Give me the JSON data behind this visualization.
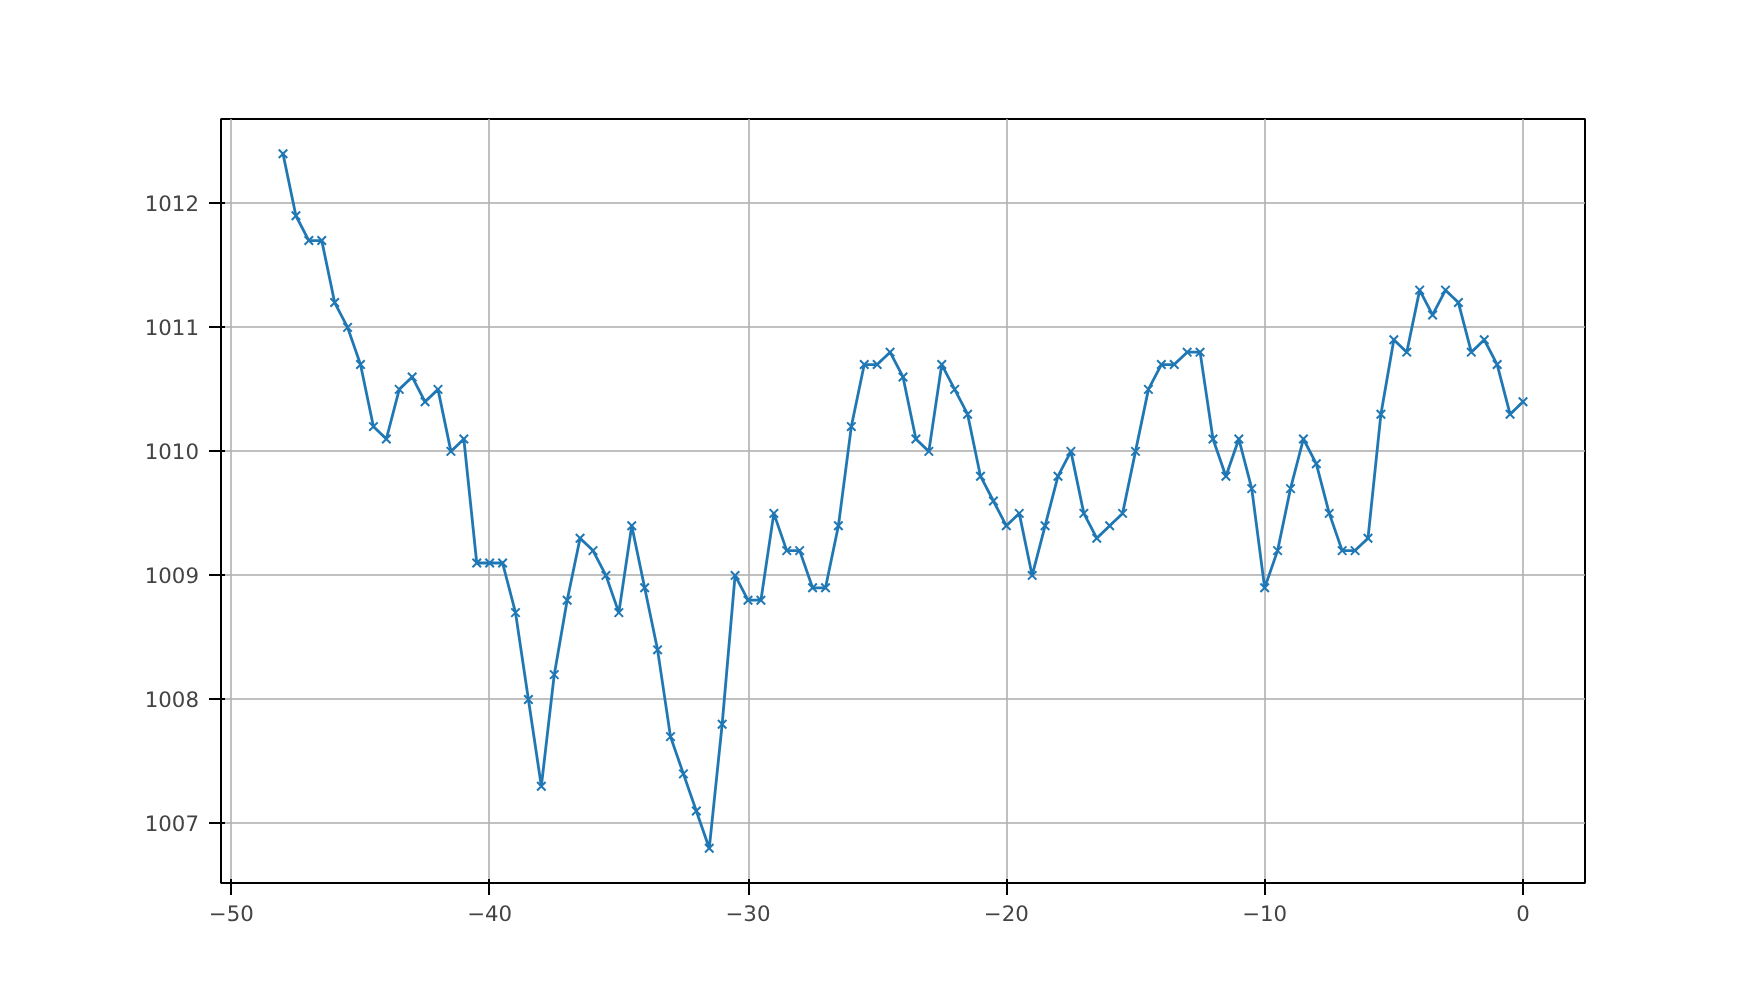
{
  "chart_data": {
    "type": "line",
    "marker": "cross",
    "line_style": "solid",
    "grid": true,
    "x": [
      -48,
      -47.5,
      -47,
      -46.5,
      -46,
      -45.5,
      -45,
      -44.5,
      -44,
      -43.5,
      -43,
      -42.5,
      -42,
      -41.5,
      -41,
      -40.5,
      -40,
      -39.5,
      -39,
      -38.5,
      -38,
      -37.5,
      -37,
      -36.5,
      -36,
      -35.5,
      -35,
      -34.5,
      -34,
      -33.5,
      -33,
      -32.5,
      -32,
      -31.5,
      -31,
      -30.5,
      -30,
      -29.5,
      -29,
      -28.5,
      -28,
      -27.5,
      -27,
      -26.5,
      -26,
      -25.5,
      -25,
      -24.5,
      -24,
      -23.5,
      -23,
      -22.5,
      -22,
      -21.5,
      -21,
      -20.5,
      -20,
      -19.5,
      -19,
      -18.5,
      -18,
      -17.5,
      -17,
      -16.5,
      -16,
      -15.5,
      -15,
      -14.5,
      -14,
      -13.5,
      -13,
      -12.5,
      -12,
      -11.5,
      -11,
      -10.5,
      -10,
      -9.5,
      -9,
      -8.5,
      -8,
      -7.5,
      -7,
      -6.5,
      -6,
      -5.5,
      -5,
      -4.5,
      -4,
      -3.5,
      -3,
      -2.5,
      -2,
      -1.5,
      -1,
      -0.5,
      0
    ],
    "series": [
      {
        "color": "#1f77b4",
        "values": [
          1012.4,
          1011.9,
          1011.7,
          1011.7,
          1011.2,
          1011.0,
          1010.7,
          1010.2,
          1010.1,
          1010.5,
          1010.6,
          1010.4,
          1010.5,
          1010.0,
          1010.1,
          1009.1,
          1009.1,
          1009.1,
          1008.7,
          1008.0,
          1007.3,
          1008.2,
          1008.8,
          1009.3,
          1009.2,
          1009.0,
          1008.7,
          1009.4,
          1008.9,
          1008.4,
          1007.7,
          1007.4,
          1007.1,
          1006.8,
          1007.8,
          1009.0,
          1008.8,
          1008.8,
          1009.5,
          1009.2,
          1009.2,
          1008.9,
          1008.9,
          1009.4,
          1010.2,
          1010.7,
          1010.7,
          1010.8,
          1010.6,
          1010.1,
          1010.0,
          1010.7,
          1010.5,
          1010.3,
          1009.8,
          1009.6,
          1009.4,
          1009.5,
          1009.0,
          1009.4,
          1009.8,
          1010.0,
          1009.5,
          1009.3,
          1009.4,
          1009.5,
          1010.0,
          1010.5,
          1010.7,
          1010.7,
          1010.8,
          1010.8,
          1010.1,
          1009.8,
          1010.1,
          1009.7,
          1008.9,
          1009.2,
          1009.7,
          1010.1,
          1009.9,
          1009.5,
          1009.2,
          1009.2,
          1009.3,
          1010.3,
          1010.9,
          1010.8,
          1011.3,
          1011.1,
          1011.3,
          1011.2,
          1010.8,
          1010.9,
          1010.7,
          1010.3,
          1010.4
        ]
      }
    ],
    "xlim": [
      -50.4,
      2.4
    ],
    "ylim": [
      1006.52,
      1012.68
    ],
    "xticks": [
      {
        "value": -50,
        "label": "−50"
      },
      {
        "value": -40,
        "label": "−40"
      },
      {
        "value": -30,
        "label": "−30"
      },
      {
        "value": -20,
        "label": "−20"
      },
      {
        "value": -10,
        "label": "−10"
      },
      0
    ],
    "yticks": [
      1007,
      1008,
      1009,
      1010,
      1011,
      1012
    ]
  }
}
